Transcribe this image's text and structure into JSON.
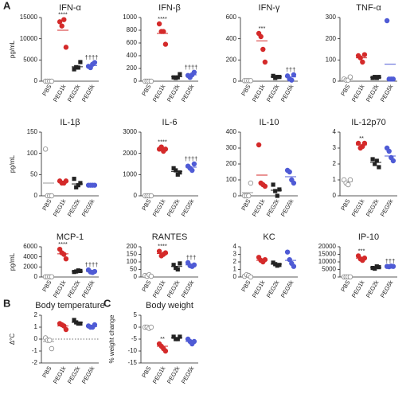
{
  "panel_labels": [
    "A",
    "B",
    "C"
  ],
  "colors": [
    "#ffffff",
    "#d42a2a",
    "#222222",
    "#4f5bd5"
  ],
  "markers": [
    "circle",
    "circle",
    "square",
    "circle"
  ],
  "chart_data": [
    {
      "type": "dot",
      "title": "IFN-α",
      "ylabel": "pg/mL",
      "categories": [
        "PBS",
        "PEG1k",
        "PEG2k",
        "PEG5k"
      ],
      "ylim": [
        0,
        15000
      ],
      "yticks": [
        0,
        5000,
        10000,
        15000
      ],
      "values": [
        [
          0,
          0,
          0,
          0
        ],
        [
          14000,
          13000,
          14500,
          8000
        ],
        [
          2800,
          3300,
          3200,
          4500
        ],
        [
          3500,
          3200,
          4000,
          4400
        ]
      ],
      "means": [
        0,
        12000,
        3400,
        3700
      ],
      "annotations": [
        null,
        "****",
        null,
        "††††"
      ]
    },
    {
      "type": "dot",
      "title": "IFN-β",
      "categories": [
        "PBS",
        "PEG1k",
        "PEG2k",
        "PEG5k"
      ],
      "ylim": [
        0,
        1000
      ],
      "yticks": [
        0,
        200,
        400,
        600,
        800,
        1000
      ],
      "values": [
        [
          0,
          0,
          0,
          0
        ],
        [
          900,
          780,
          780,
          580
        ],
        [
          60,
          50,
          60,
          110
        ],
        [
          90,
          60,
          100,
          140
        ]
      ],
      "means": [
        0,
        750,
        70,
        100
      ],
      "annotations": [
        null,
        "****",
        null,
        "††††"
      ]
    },
    {
      "type": "dot",
      "title": "IFN-γ",
      "categories": [
        "PBS",
        "PEG1k",
        "PEG2k",
        "PEG5k"
      ],
      "ylim": [
        0,
        600
      ],
      "yticks": [
        0,
        200,
        400,
        600
      ],
      "values": [
        [
          5,
          5,
          5,
          5
        ],
        [
          450,
          420,
          300,
          180
        ],
        [
          50,
          30,
          40,
          40
        ],
        [
          50,
          20,
          10,
          60
        ]
      ],
      "means": [
        5,
        380,
        40,
        40
      ],
      "annotations": [
        null,
        "***",
        null,
        "†††"
      ]
    },
    {
      "type": "dot",
      "title": "TNF-α",
      "categories": [
        "PBS",
        "PEG1k",
        "PEG2k",
        "PEG5k"
      ],
      "ylim": [
        0,
        300
      ],
      "yticks": [
        0,
        100,
        200,
        300
      ],
      "values": [
        [
          10,
          5,
          5,
          20
        ],
        [
          120,
          110,
          90,
          125
        ],
        [
          15,
          20,
          15,
          20
        ],
        [
          285,
          10,
          10,
          10
        ]
      ],
      "means": [
        10,
        110,
        18,
        80
      ],
      "annotations": [
        null,
        null,
        null,
        null
      ]
    },
    {
      "type": "dot",
      "title": "IL-1β",
      "ylabel": "pg/mL",
      "categories": [
        "PBS",
        "PEG1k",
        "PEG2k",
        "PEG5k"
      ],
      "ylim": [
        0,
        150
      ],
      "yticks": [
        0,
        50,
        100,
        150
      ],
      "values": [
        [
          110,
          0,
          0,
          0
        ],
        [
          35,
          30,
          30,
          35
        ],
        [
          40,
          20,
          25,
          30
        ],
        [
          25,
          25,
          25,
          25
        ]
      ],
      "means": [
        30,
        33,
        28,
        25
      ],
      "annotations": [
        null,
        null,
        null,
        null
      ]
    },
    {
      "type": "dot",
      "title": "IL-6",
      "categories": [
        "PBS",
        "PEG1k",
        "PEG2k",
        "PEG5k"
      ],
      "ylim": [
        0,
        3000
      ],
      "yticks": [
        0,
        1000,
        2000,
        3000
      ],
      "values": [
        [
          0,
          0,
          0,
          0
        ],
        [
          2200,
          2300,
          2100,
          2200
        ],
        [
          1300,
          1200,
          1000,
          1100
        ],
        [
          1400,
          1300,
          1200,
          1500
        ]
      ],
      "means": [
        0,
        2200,
        1150,
        1350
      ],
      "annotations": [
        null,
        "****",
        null,
        "††††"
      ]
    },
    {
      "type": "dot",
      "title": "IL-10",
      "categories": [
        "PBS",
        "PEG1k",
        "PEG2k",
        "PEG5k"
      ],
      "ylim": [
        0,
        400
      ],
      "yticks": [
        0,
        100,
        200,
        300,
        400
      ],
      "values": [
        [
          0,
          0,
          0,
          80
        ],
        [
          320,
          80,
          70,
          60
        ],
        [
          70,
          30,
          0,
          40
        ],
        [
          160,
          150,
          100,
          80
        ]
      ],
      "means": [
        20,
        130,
        35,
        120
      ],
      "annotations": [
        null,
        null,
        null,
        null
      ]
    },
    {
      "type": "dot",
      "title": "IL-12p70",
      "categories": [
        "PBS",
        "PEG1k",
        "PEG2k",
        "PEG5k"
      ],
      "ylim": [
        0,
        4
      ],
      "yticks": [
        0,
        1,
        2,
        3,
        4
      ],
      "values": [
        [
          1,
          0.8,
          0.7,
          1
        ],
        [
          3.3,
          3,
          3.1,
          3.3
        ],
        [
          2.3,
          2,
          2.2,
          1.8
        ],
        [
          3,
          2.8,
          2.4,
          2.2
        ]
      ],
      "means": [
        0.9,
        3.2,
        2.1,
        2.5
      ],
      "annotations": [
        null,
        "**",
        null,
        null
      ]
    },
    {
      "type": "dot",
      "title": "MCP-1",
      "ylabel": "pg/mL",
      "categories": [
        "PBS",
        "PEG1k",
        "PEG2k",
        "PEG5k"
      ],
      "ylim": [
        0,
        6000
      ],
      "yticks": [
        0,
        2000,
        4000,
        6000
      ],
      "values": [
        [
          50,
          50,
          50,
          50
        ],
        [
          5500,
          4800,
          4500,
          3600
        ],
        [
          1000,
          1100,
          1300,
          1200
        ],
        [
          1400,
          1000,
          900,
          1100
        ]
      ],
      "means": [
        50,
        4600,
        1150,
        1100
      ],
      "annotations": [
        null,
        "****",
        null,
        "††††"
      ]
    },
    {
      "type": "dot",
      "title": "RANTES",
      "categories": [
        "PBS",
        "PEG1k",
        "PEG2k",
        "PEG5k"
      ],
      "ylim": [
        0,
        200
      ],
      "yticks": [
        0,
        50,
        100,
        150,
        200
      ],
      "values": [
        [
          10,
          5,
          15,
          5
        ],
        [
          170,
          140,
          150,
          160
        ],
        [
          80,
          60,
          50,
          90
        ],
        [
          95,
          75,
          70,
          80
        ]
      ],
      "means": [
        9,
        155,
        70,
        80
      ],
      "annotations": [
        null,
        "****",
        null,
        "†††"
      ]
    },
    {
      "type": "dot",
      "title": "KC",
      "categories": [
        "PBS",
        "PEG1k",
        "PEG2k",
        "PEG5k"
      ],
      "ylim": [
        0,
        4
      ],
      "yticks": [
        0,
        1,
        2,
        3,
        4
      ],
      "values": [
        [
          0.1,
          0.3,
          0.2,
          0
        ],
        [
          2.6,
          2.2,
          2,
          2.3
        ],
        [
          1.9,
          1.7,
          1.5,
          1.6
        ],
        [
          3.3,
          2.3,
          1.8,
          1.4
        ]
      ],
      "means": [
        0.15,
        2.2,
        1.7,
        2.2
      ],
      "annotations": [
        null,
        null,
        null,
        null
      ]
    },
    {
      "type": "dot",
      "title": "IP-10",
      "categories": [
        "PBS",
        "PEG1k",
        "PEG2k",
        "PEG5k"
      ],
      "ylim": [
        0,
        20000
      ],
      "yticks": [
        0,
        5000,
        10000,
        15000,
        20000
      ],
      "values": [
        [
          100,
          100,
          100,
          100
        ],
        [
          14000,
          12000,
          11000,
          12500
        ],
        [
          6000,
          5500,
          7000,
          6500
        ],
        [
          7000,
          6800,
          7200,
          7000
        ]
      ],
      "means": [
        100,
        12500,
        6200,
        7000
      ],
      "annotations": [
        null,
        "***",
        null,
        "†††"
      ]
    },
    {
      "type": "dot",
      "title": "Body temperature",
      "ylabel": "Δ°C",
      "categories": [
        "PBS",
        "PEG1k",
        "PEG2k",
        "PEG5k"
      ],
      "ylim": [
        -2,
        2
      ],
      "yticks": [
        -2,
        -1,
        0,
        1,
        2
      ],
      "refline": 0,
      "values": [
        [
          0.1,
          -0.1,
          -0.1,
          -0.8
        ],
        [
          1.3,
          1.2,
          1.1,
          0.8
        ],
        [
          1.6,
          1.4,
          1.3,
          1.3
        ],
        [
          1.1,
          1,
          1,
          1.2
        ]
      ],
      "means": [
        -0.2,
        1.1,
        1.4,
        1.05
      ],
      "annotations": [
        null,
        null,
        null,
        null
      ]
    },
    {
      "type": "dot",
      "title": "Body weight",
      "ylabel": "% weight change",
      "categories": [
        "PBS",
        "PEG1k",
        "PEG2k",
        "PEG5k"
      ],
      "ylim": [
        -15,
        5
      ],
      "yticks": [
        -15,
        -10,
        -5,
        0,
        5
      ],
      "values": [
        [
          0,
          0,
          -0.5,
          0
        ],
        [
          -7,
          -8,
          -9,
          -10
        ],
        [
          -4,
          -5,
          -5,
          -4
        ],
        [
          -5,
          -6,
          -7,
          -6
        ]
      ],
      "means": [
        0,
        -8,
        -4.5,
        -6
      ],
      "annotations": [
        null,
        "**",
        null,
        null
      ]
    }
  ]
}
